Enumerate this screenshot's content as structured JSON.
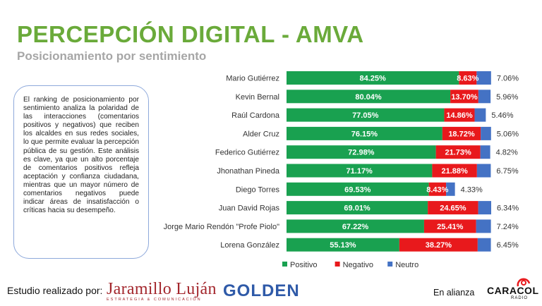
{
  "header": {
    "title": "PERCEPCIÓN DIGITAL - AMVA",
    "subtitle": "Posicionamiento por sentimiento"
  },
  "description": "El ranking de posicionamiento por sentimiento analiza la polaridad de las interacciones (comentarios positivos y negativos) que reciben los alcaldes en sus redes sociales, lo que permite evaluar la percepción pública de su gestión. Este análisis es clave, ya que un alto porcentaje de comentarios positivos refleja aceptación y confianza ciudadana, mientras que un mayor número de comentarios negativos puede indicar áreas de insatisfacción o críticas hacia su desempeño.",
  "chart_data": {
    "type": "bar",
    "orientation": "horizontal",
    "stacked": true,
    "categories": [
      "Mario Gutiérrez",
      "Kevin Bernal",
      "Raúl Cardona",
      "Alder Cruz",
      "Federico Gutiérrez",
      "Jhonathan Pineda",
      "Diego Torres",
      "Juan David Rojas",
      "Jorge Mario Rendón \"Profe Piolo\"",
      "Lorena González"
    ],
    "series": [
      {
        "name": "Positivo",
        "color": "#19a150",
        "values": [
          84.25,
          80.04,
          77.05,
          76.15,
          72.98,
          71.17,
          69.53,
          69.01,
          67.22,
          55.13
        ],
        "labels": [
          "84.25%",
          "80.04%",
          "77.05%",
          "76.15%",
          "72.98%",
          "71.17%",
          "69.53%",
          "69.01%",
          "67.22%",
          "55.13%"
        ]
      },
      {
        "name": "Negativo",
        "color": "#e8191c",
        "values": [
          8.63,
          13.7,
          14.86,
          18.72,
          21.73,
          21.88,
          8.43,
          24.65,
          25.41,
          38.27
        ],
        "labels": [
          "8.63%",
          "13.70%",
          "14.86%",
          "18.72%",
          "21.73%",
          "21.88%",
          "8.43%",
          "24.65%",
          "25.41%",
          "38.27%"
        ]
      },
      {
        "name": "Neutro",
        "color": "#4472c4",
        "values": [
          7.06,
          5.96,
          5.46,
          5.06,
          4.82,
          6.75,
          4.33,
          6.34,
          7.24,
          6.45
        ],
        "labels": [
          "7.06%",
          "5.96%",
          "5.46%",
          "5.06%",
          "4.82%",
          "6.75%",
          "4.33%",
          "6.34%",
          "7.24%",
          "6.45%"
        ]
      }
    ],
    "xlim": [
      0,
      100
    ],
    "legend_position": "bottom"
  },
  "footer": {
    "study_label": "Estudio realizado por:",
    "logo1_name": "Jaramillo Luján",
    "logo1_tag": "ESTRATEGIA & COMUNICACIÓN",
    "logo2_name": "GOLDEN",
    "alliance_label": "En alianza",
    "logo3_name": "CARACOL",
    "logo3_sub": "RADIO"
  }
}
